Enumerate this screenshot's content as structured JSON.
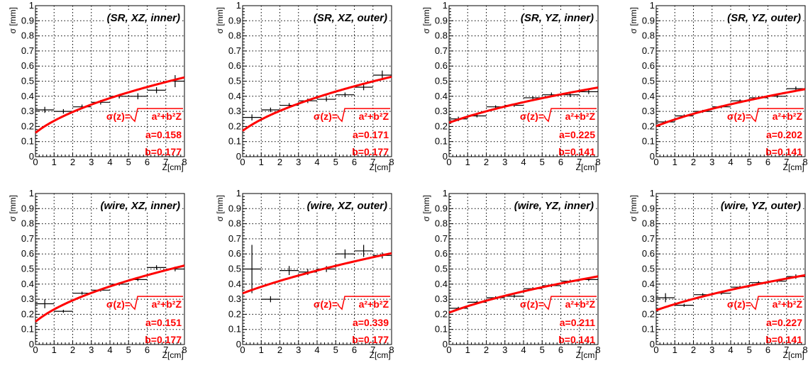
{
  "shared": {
    "xlabel_main": "Z",
    "xlabel_unit": "[cm]",
    "ylabel": "σ [mm]",
    "formula_prefix": "σ(z)=",
    "formula_radicand": "a²+b²Z",
    "curve_color": "#ff0000",
    "x_ticks": [
      "0",
      "1",
      "2",
      "3",
      "4",
      "5",
      "6",
      "7",
      "8"
    ],
    "y_ticks": [
      "0",
      "0.1",
      "0.2",
      "0.3",
      "0.4",
      "0.5",
      "0.6",
      "0.7",
      "0.8",
      "0.9",
      "1"
    ]
  },
  "chart_data": [
    {
      "type": "scatter",
      "title": "(SR, XZ, inner)",
      "xlabel": "Z [cm]",
      "ylabel": "σ [mm]",
      "xlim": [
        0,
        8
      ],
      "ylim": [
        0,
        1
      ],
      "grid": true,
      "fit": {
        "a_label": "a=0.158",
        "b_label": "b=0.177",
        "a": 0.158,
        "b": 0.177
      },
      "points": [
        {
          "x": 0.5,
          "y": 0.31,
          "yerr": 0.02
        },
        {
          "x": 1.5,
          "y": 0.3,
          "yerr": 0.015
        },
        {
          "x": 2.5,
          "y": 0.33,
          "yerr": 0.015
        },
        {
          "x": 3.5,
          "y": 0.36,
          "yerr": 0.015
        },
        {
          "x": 4.5,
          "y": 0.4,
          "yerr": 0.015
        },
        {
          "x": 5.5,
          "y": 0.4,
          "yerr": 0.02
        },
        {
          "x": 6.5,
          "y": 0.44,
          "yerr": 0.02
        },
        {
          "x": 7.5,
          "y": 0.5,
          "yerr": 0.04
        }
      ]
    },
    {
      "type": "scatter",
      "title": "(SR, XZ, outer)",
      "xlabel": "Z [cm]",
      "ylabel": "σ [mm]",
      "xlim": [
        0,
        8
      ],
      "ylim": [
        0,
        1
      ],
      "grid": true,
      "fit": {
        "a_label": "a=0.171",
        "b_label": "b=0.177",
        "a": 0.171,
        "b": 0.177
      },
      "points": [
        {
          "x": 0.5,
          "y": 0.26,
          "yerr": 0.02
        },
        {
          "x": 1.5,
          "y": 0.31,
          "yerr": 0.015
        },
        {
          "x": 2.5,
          "y": 0.34,
          "yerr": 0.015
        },
        {
          "x": 3.5,
          "y": 0.37,
          "yerr": 0.015
        },
        {
          "x": 4.5,
          "y": 0.38,
          "yerr": 0.015
        },
        {
          "x": 5.5,
          "y": 0.41,
          "yerr": 0.015
        },
        {
          "x": 6.5,
          "y": 0.46,
          "yerr": 0.02
        },
        {
          "x": 7.5,
          "y": 0.54,
          "yerr": 0.03
        }
      ]
    },
    {
      "type": "scatter",
      "title": "(SR, YZ, inner)",
      "xlabel": "Z [cm]",
      "ylabel": "σ [mm]",
      "xlim": [
        0,
        8
      ],
      "ylim": [
        0,
        1
      ],
      "grid": true,
      "fit": {
        "a_label": "a=0.225",
        "b_label": "b=0.141",
        "a": 0.225,
        "b": 0.141
      },
      "points": [
        {
          "x": 0.5,
          "y": 0.25,
          "yerr": 0.015
        },
        {
          "x": 1.5,
          "y": 0.27,
          "yerr": 0.01
        },
        {
          "x": 2.5,
          "y": 0.33,
          "yerr": 0.01
        },
        {
          "x": 3.5,
          "y": 0.34,
          "yerr": 0.01
        },
        {
          "x": 4.5,
          "y": 0.39,
          "yerr": 0.01
        },
        {
          "x": 5.5,
          "y": 0.41,
          "yerr": 0.015
        },
        {
          "x": 6.5,
          "y": 0.41,
          "yerr": 0.015
        },
        {
          "x": 7.5,
          "y": 0.43,
          "yerr": 0.015
        }
      ]
    },
    {
      "type": "scatter",
      "title": "(SR, YZ, outer)",
      "xlabel": "Z [cm]",
      "ylabel": "σ [mm]",
      "xlim": [
        0,
        8
      ],
      "ylim": [
        0,
        1
      ],
      "grid": true,
      "fit": {
        "a_label": "a=0.202",
        "b_label": "b=0.141",
        "a": 0.202,
        "b": 0.141
      },
      "points": [
        {
          "x": 0.5,
          "y": 0.23,
          "yerr": 0.01
        },
        {
          "x": 1.5,
          "y": 0.27,
          "yerr": 0.01
        },
        {
          "x": 2.5,
          "y": 0.3,
          "yerr": 0.01
        },
        {
          "x": 3.5,
          "y": 0.33,
          "yerr": 0.01
        },
        {
          "x": 4.5,
          "y": 0.37,
          "yerr": 0.01
        },
        {
          "x": 5.5,
          "y": 0.39,
          "yerr": 0.01
        },
        {
          "x": 6.5,
          "y": 0.4,
          "yerr": 0.01
        },
        {
          "x": 7.5,
          "y": 0.45,
          "yerr": 0.015
        }
      ]
    },
    {
      "type": "scatter",
      "title": "(wire, XZ, inner)",
      "xlabel": "Z [cm]",
      "ylabel": "σ [mm]",
      "xlim": [
        0,
        8
      ],
      "ylim": [
        0,
        1
      ],
      "grid": true,
      "fit": {
        "a_label": "a=0.151",
        "b_label": "b=0.177",
        "a": 0.151,
        "b": 0.177
      },
      "points": [
        {
          "x": 0.5,
          "y": 0.27,
          "yerr": 0.03
        },
        {
          "x": 1.5,
          "y": 0.22,
          "yerr": 0.01
        },
        {
          "x": 2.5,
          "y": 0.34,
          "yerr": 0.01
        },
        {
          "x": 3.5,
          "y": 0.36,
          "yerr": 0.01
        },
        {
          "x": 4.5,
          "y": 0.4,
          "yerr": 0.01
        },
        {
          "x": 5.5,
          "y": 0.43,
          "yerr": 0.01
        },
        {
          "x": 6.5,
          "y": 0.51,
          "yerr": 0.015
        },
        {
          "x": 7.5,
          "y": 0.5,
          "yerr": 0.015
        }
      ]
    },
    {
      "type": "scatter",
      "title": "(wire, XZ, outer)",
      "xlabel": "Z [cm]",
      "ylabel": "σ [mm]",
      "xlim": [
        0,
        8
      ],
      "ylim": [
        0,
        1
      ],
      "grid": true,
      "fit": {
        "a_label": "a=0.339",
        "b_label": "b=0.177",
        "a": 0.339,
        "b": 0.177
      },
      "points": [
        {
          "x": 0.5,
          "y": 0.5,
          "yerr": 0.16
        },
        {
          "x": 1.5,
          "y": 0.3,
          "yerr": 0.02
        },
        {
          "x": 2.5,
          "y": 0.49,
          "yerr": 0.03
        },
        {
          "x": 3.5,
          "y": 0.48,
          "yerr": 0.02
        },
        {
          "x": 4.5,
          "y": 0.5,
          "yerr": 0.02
        },
        {
          "x": 5.5,
          "y": 0.6,
          "yerr": 0.03
        },
        {
          "x": 6.5,
          "y": 0.62,
          "yerr": 0.04
        },
        {
          "x": 7.5,
          "y": 0.59,
          "yerr": 0.02
        }
      ]
    },
    {
      "type": "scatter",
      "title": "(wire, YZ, inner)",
      "xlabel": "Z [cm]",
      "ylabel": "σ [mm]",
      "xlim": [
        0,
        8
      ],
      "ylim": [
        0,
        1
      ],
      "grid": true,
      "fit": {
        "a_label": "a=0.211",
        "b_label": "b=0.141",
        "a": 0.211,
        "b": 0.141
      },
      "points": [
        {
          "x": 0.5,
          "y": 0.24,
          "yerr": 0.01
        },
        {
          "x": 1.5,
          "y": 0.28,
          "yerr": 0.01
        },
        {
          "x": 2.5,
          "y": 0.31,
          "yerr": 0.01
        },
        {
          "x": 3.5,
          "y": 0.32,
          "yerr": 0.01
        },
        {
          "x": 4.5,
          "y": 0.37,
          "yerr": 0.01
        },
        {
          "x": 5.5,
          "y": 0.39,
          "yerr": 0.01
        },
        {
          "x": 6.5,
          "y": 0.42,
          "yerr": 0.01
        },
        {
          "x": 7.5,
          "y": 0.43,
          "yerr": 0.01
        }
      ]
    },
    {
      "type": "scatter",
      "title": "(wire, YZ, outer)",
      "xlabel": "Z [cm]",
      "ylabel": "σ [mm]",
      "xlim": [
        0,
        8
      ],
      "ylim": [
        0,
        1
      ],
      "grid": true,
      "fit": {
        "a_label": "a=0.227",
        "b_label": "b=0.141",
        "a": 0.227,
        "b": 0.141
      },
      "points": [
        {
          "x": 0.5,
          "y": 0.31,
          "yerr": 0.03
        },
        {
          "x": 1.5,
          "y": 0.26,
          "yerr": 0.01
        },
        {
          "x": 2.5,
          "y": 0.33,
          "yerr": 0.01
        },
        {
          "x": 3.5,
          "y": 0.34,
          "yerr": 0.01
        },
        {
          "x": 4.5,
          "y": 0.38,
          "yerr": 0.01
        },
        {
          "x": 5.5,
          "y": 0.41,
          "yerr": 0.01
        },
        {
          "x": 6.5,
          "y": 0.42,
          "yerr": 0.01
        },
        {
          "x": 7.5,
          "y": 0.45,
          "yerr": 0.015
        }
      ]
    }
  ]
}
